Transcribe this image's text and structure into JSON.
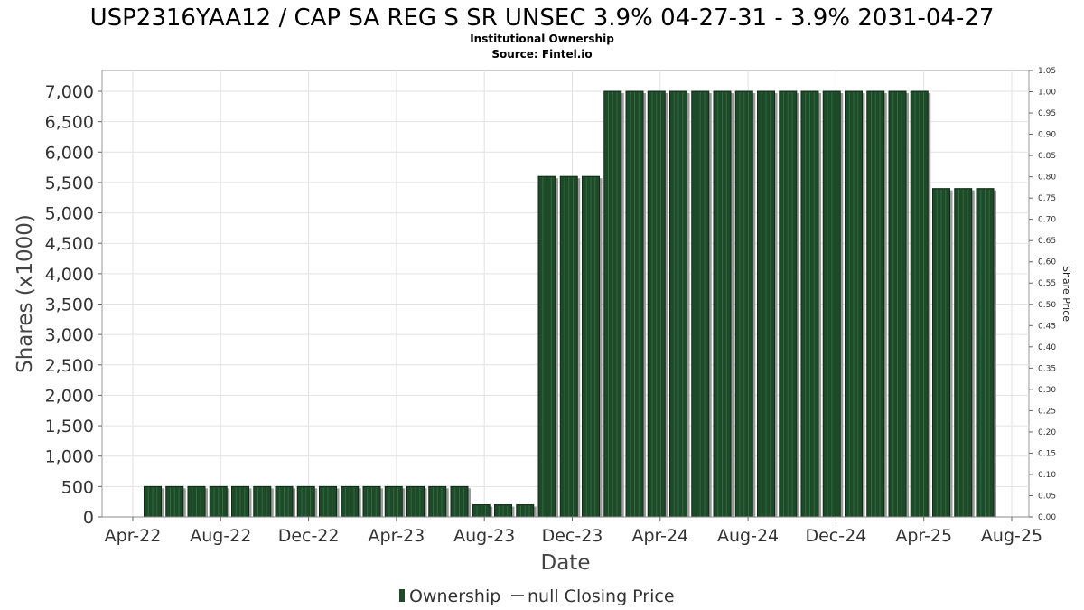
{
  "chart_data": {
    "type": "bar",
    "title": "USP2316YAA12 / CAP SA REG S SR UNSEC 3.9% 04-27-31 - 3.9% 2031-04-27",
    "subtitle": "Institutional Ownership",
    "source": "Source: Fintel.io",
    "xlabel": "Date",
    "ylabel": "Shares (x1000)",
    "ylabel_right": "Share Price",
    "ylim": [
      0,
      7000
    ],
    "ylim_right": [
      0,
      1.05
    ],
    "y_ticks": [
      "0",
      "500",
      "1,000",
      "1,500",
      "2,000",
      "2,500",
      "3,000",
      "3,500",
      "4,000",
      "4,500",
      "5,000",
      "5,500",
      "6,000",
      "6,500",
      "7,000"
    ],
    "y_ticks_right": [
      "0.00",
      "0.05",
      "0.10",
      "0.15",
      "0.20",
      "0.25",
      "0.30",
      "0.35",
      "0.40",
      "0.45",
      "0.50",
      "0.55",
      "0.60",
      "0.65",
      "0.70",
      "0.75",
      "0.80",
      "0.85",
      "0.90",
      "0.95",
      "1.00",
      "1.05"
    ],
    "x_ticks": [
      "Apr-22",
      "Aug-22",
      "Dec-22",
      "Apr-23",
      "Aug-23",
      "Dec-23",
      "Apr-24",
      "Aug-24",
      "Dec-24",
      "Apr-25",
      "Aug-25"
    ],
    "grid": true,
    "legend_position": "bottom",
    "legend": [
      "Ownership",
      "null Closing Price"
    ],
    "series": [
      {
        "name": "Ownership",
        "color": "#1e4a2a",
        "values": [
          500,
          500,
          500,
          500,
          500,
          500,
          500,
          500,
          500,
          500,
          500,
          500,
          500,
          500,
          500,
          200,
          200,
          200,
          5600,
          5600,
          5600,
          7000,
          7000,
          7000,
          7000,
          7000,
          7000,
          7000,
          7000,
          7000,
          7000,
          7000,
          7000,
          7000,
          7000,
          7000,
          5400,
          5400,
          5400
        ]
      }
    ]
  }
}
